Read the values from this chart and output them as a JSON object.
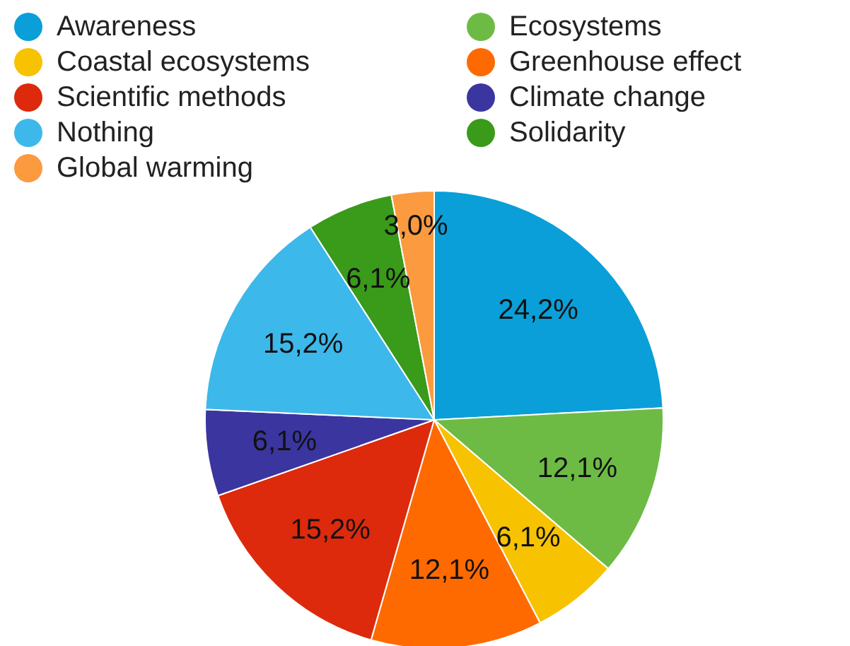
{
  "chart_data": {
    "type": "pie",
    "categories": [
      "Awareness",
      "Ecosystems",
      "Coastal ecosystems",
      "Greenhouse effect",
      "Scientific methods",
      "Climate change",
      "Nothing",
      "Solidarity",
      "Global warming"
    ],
    "values": [
      24.2,
      12.1,
      6.1,
      12.1,
      15.2,
      6.1,
      15.2,
      6.1,
      3.0
    ],
    "value_labels": [
      "24,2%",
      "12,1%",
      "6,1%",
      "12,1%",
      "15,2%",
      "6,1%",
      "15,2%",
      "6,1%",
      "3,0%"
    ],
    "colors": [
      "#0a9fd8",
      "#6dbb45",
      "#f7c200",
      "#fe6a00",
      "#dd2a0c",
      "#3b35a0",
      "#3db8ea",
      "#3a9a1a",
      "#fc9a3f"
    ],
    "legend": "top"
  }
}
